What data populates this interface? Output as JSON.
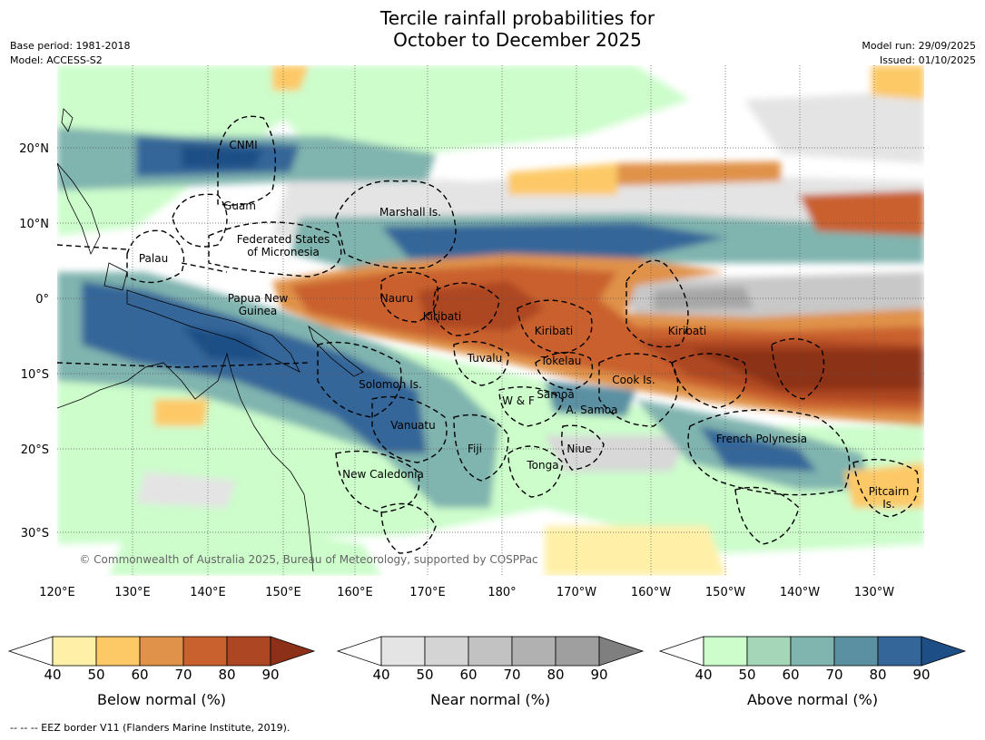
{
  "header": {
    "title_line1": "Tercile rainfall probabilities for",
    "title_line2": "October to December 2025",
    "base_period": "Base period: 1981-2018",
    "model": "Model: ACCESS-S2",
    "model_run": "Model run: 29/09/2025",
    "issued": "Issued: 01/10/2025"
  },
  "map": {
    "lon_ticks": [
      "120°E",
      "130°E",
      "140°E",
      "150°E",
      "160°E",
      "170°E",
      "180°",
      "170°W",
      "160°W",
      "150°W",
      "140°W",
      "130°W"
    ],
    "lat_ticks": [
      "20°N",
      "10°N",
      "0°",
      "10°S",
      "20°S",
      "30°S"
    ],
    "copyright": "© Commonwealth of Australia 2025, Bureau of Meteorology, supported by COSPPac",
    "labels": [
      {
        "id": "cnmi",
        "text": "CNMI"
      },
      {
        "id": "guam",
        "text": "Guam"
      },
      {
        "id": "marshall",
        "text": "Marshall Is."
      },
      {
        "id": "palau",
        "text": "Palau"
      },
      {
        "id": "fsm",
        "text": "Federated States\nof Micronesia"
      },
      {
        "id": "png",
        "text": "Papua New\nGuinea"
      },
      {
        "id": "nauru",
        "text": "Nauru"
      },
      {
        "id": "kiribati-w",
        "text": "Kiribati"
      },
      {
        "id": "kiribati-c",
        "text": "Kiribati"
      },
      {
        "id": "kiribati-e",
        "text": "Kiribati"
      },
      {
        "id": "tuvalu",
        "text": "Tuvalu"
      },
      {
        "id": "tokelau",
        "text": "Tokelau"
      },
      {
        "id": "cook",
        "text": "Cook Is."
      },
      {
        "id": "solomon",
        "text": "Solomon Is."
      },
      {
        "id": "wf",
        "text": "W & F"
      },
      {
        "id": "samoa",
        "text": "Samoa"
      },
      {
        "id": "asamoa",
        "text": "A. Samoa"
      },
      {
        "id": "vanuatu",
        "text": "Vanuatu"
      },
      {
        "id": "fiji",
        "text": "Fiji"
      },
      {
        "id": "niue",
        "text": "Niue"
      },
      {
        "id": "frpoly",
        "text": "French Polynesia"
      },
      {
        "id": "tonga",
        "text": "Tonga"
      },
      {
        "id": "newcal",
        "text": "New Caledonia"
      },
      {
        "id": "pitcairn",
        "text": "Pitcairn\nIs."
      }
    ]
  },
  "colorbars": [
    {
      "name": "below",
      "title": "Below normal (%)",
      "ticks": [
        "40",
        "50",
        "60",
        "70",
        "80",
        "90"
      ],
      "colors": [
        "#fff0a8",
        "#fdc966",
        "#e0924a",
        "#c9612e",
        "#ad4623"
      ],
      "over": "#8c3118"
    },
    {
      "name": "near",
      "title": "Near normal (%)",
      "ticks": [
        "40",
        "50",
        "60",
        "70",
        "80",
        "90"
      ],
      "colors": [
        "#e4e4e4",
        "#d4d4d4",
        "#c2c2c2",
        "#b1b1b1",
        "#9f9f9f"
      ],
      "over": "#7f7f7f"
    },
    {
      "name": "above",
      "title": "Above normal (%)",
      "ticks": [
        "40",
        "50",
        "60",
        "70",
        "80",
        "90"
      ],
      "colors": [
        "#ccfdcb",
        "#a5d6b8",
        "#80b4af",
        "#5a90a2",
        "#346699"
      ],
      "over": "#1d4f86"
    }
  ],
  "footer": "--  --  -- EEZ border V11 (Flanders Marine Institute, 2019)."
}
